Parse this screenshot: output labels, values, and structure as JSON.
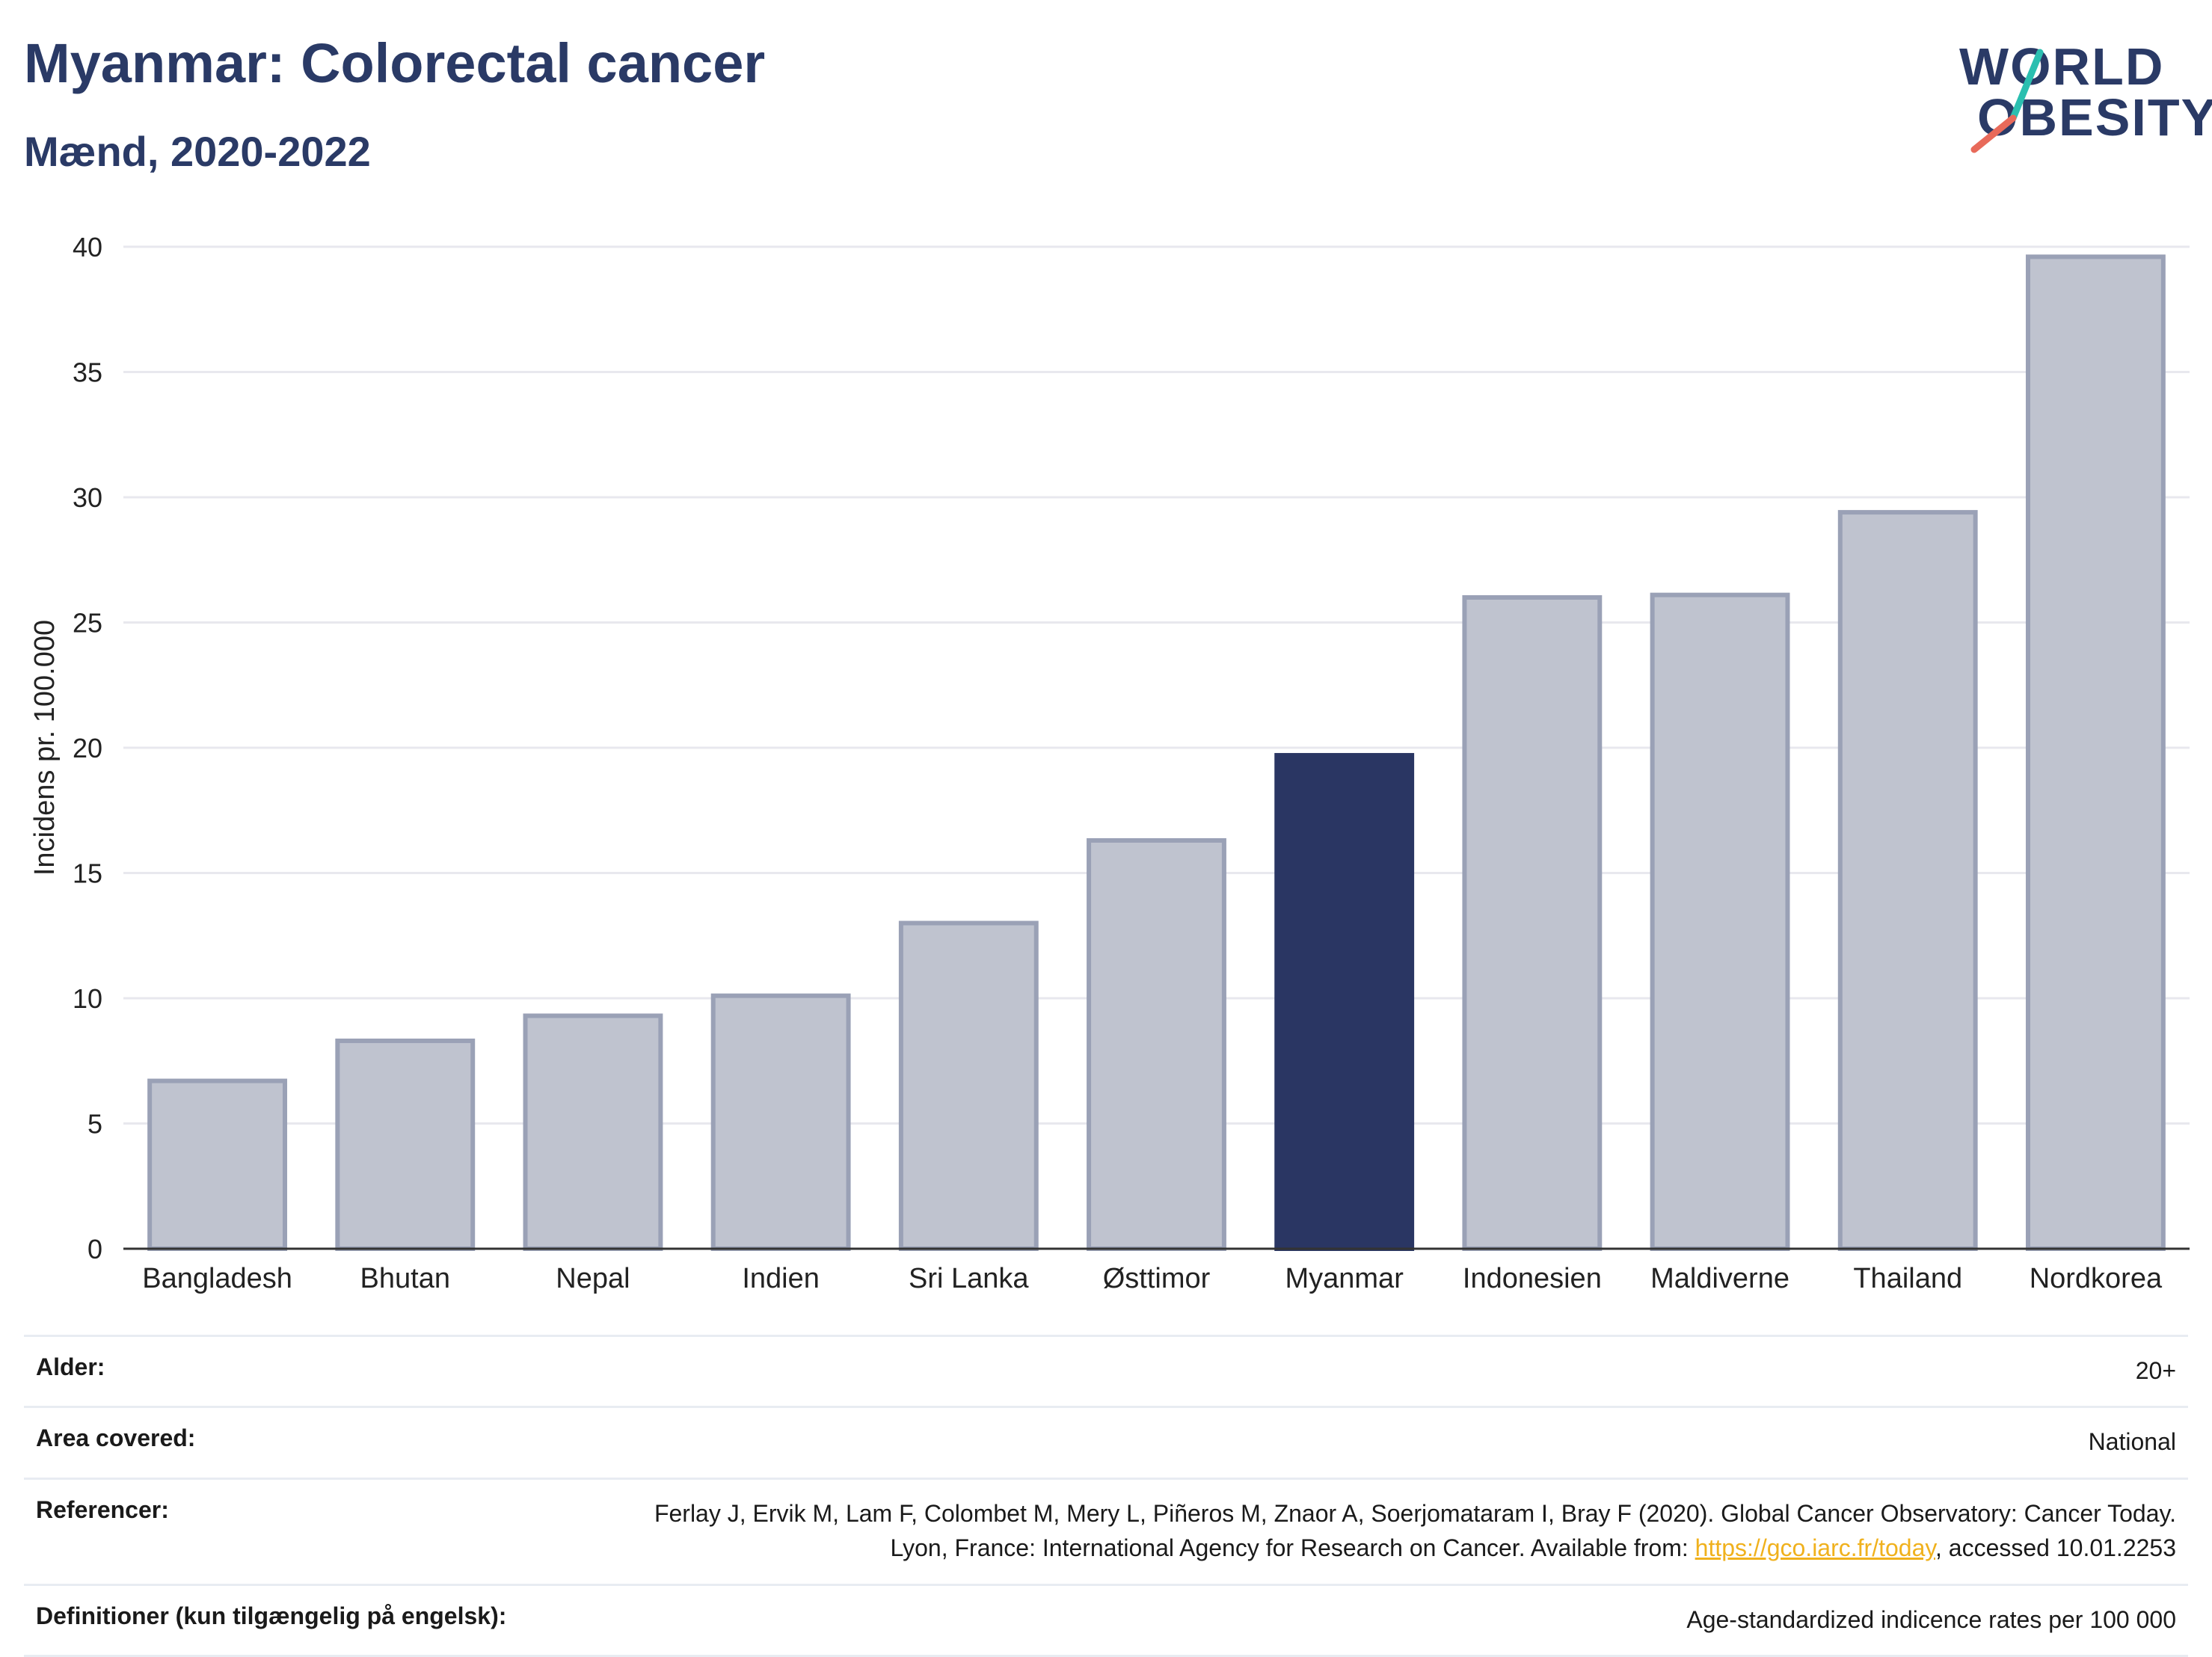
{
  "header": {
    "title": "Myanmar: Colorectal cancer",
    "subtitle": "Mænd, 2020-2022"
  },
  "logo": {
    "line1": "WORLD",
    "line2": "OBESITY",
    "accent_colors": [
      "#2bbfb0",
      "#e86a5a"
    ]
  },
  "colors": {
    "highlight": "#2a3663",
    "bar": "#bfc3cf",
    "bar_edge": "#9aa1b6",
    "grid": "#e8e8ee",
    "axis": "#333333"
  },
  "chart_data": {
    "type": "bar",
    "ylabel": "Incidens pr. 100.000",
    "xlabel": "",
    "ylim": [
      0,
      40
    ],
    "yticks": [
      0,
      5,
      10,
      15,
      20,
      25,
      30,
      35,
      40
    ],
    "grid": true,
    "categories": [
      "Bangladesh",
      "Bhutan",
      "Nepal",
      "Indien",
      "Sri Lanka",
      "Østtimor",
      "Myanmar",
      "Indonesien",
      "Maldiverne",
      "Thailand",
      "Nordkorea"
    ],
    "values": [
      6.7,
      8.3,
      9.3,
      10.1,
      13.0,
      16.3,
      19.7,
      26.0,
      26.1,
      29.4,
      39.6
    ],
    "highlight": "Myanmar"
  },
  "meta": [
    {
      "label": "Alder:",
      "value": "20+"
    },
    {
      "label": "Area covered:",
      "value": "National"
    },
    {
      "label": "Referencer:",
      "value_pre": "Ferlay J, Ervik M, Lam F, Colombet M, Mery L, Piñeros M, Znaor A, Soerjomataram I, Bray F (2020). Global Cancer Observatory: Cancer Today. Lyon, France: International Agency for Research on Cancer. Available from: ",
      "link": "https://gco.iarc.fr/today",
      "value_post": ", accessed 10.01.2253"
    },
    {
      "label": "Definitioner (kun tilgængelig på engelsk):",
      "value": "Age-standardized indicence rates per 100 000"
    }
  ]
}
